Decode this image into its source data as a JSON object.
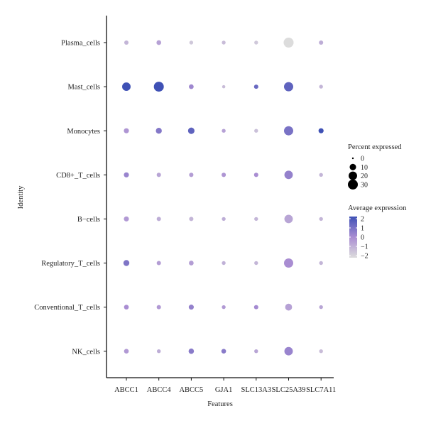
{
  "chart_data": {
    "type": "dotplot",
    "xlabel": "Features",
    "ylabel": "Identity",
    "features": [
      "ABCC1",
      "ABCC4",
      "ABCC5",
      "GJA1",
      "SLC13A3",
      "SLC25A39",
      "SLC7A11"
    ],
    "identities": [
      "Plasma_cells",
      "Mast_cells",
      "Monocytes",
      "CD8+_T_cells",
      "B−cells",
      "Regulatory_T_cells",
      "Conventional_T_cells",
      "NK_cells"
    ],
    "points": [
      {
        "identity": "Plasma_cells",
        "values": [
          {
            "feature": "ABCC1",
            "pct": 3,
            "avg": -1.0
          },
          {
            "feature": "ABCC4",
            "pct": 4,
            "avg": -0.5
          },
          {
            "feature": "ABCC5",
            "pct": 2,
            "avg": -1.5
          },
          {
            "feature": "GJA1",
            "pct": 2,
            "avg": -1.2
          },
          {
            "feature": "SLC13A3",
            "pct": 2,
            "avg": -1.5
          },
          {
            "feature": "SLC25A39",
            "pct": 30,
            "avg": -2.0
          },
          {
            "feature": "SLC7A11",
            "pct": 3,
            "avg": -0.8
          }
        ]
      },
      {
        "identity": "Mast_cells",
        "values": [
          {
            "feature": "ABCC1",
            "pct": 20,
            "avg": 2.3
          },
          {
            "feature": "ABCC4",
            "pct": 30,
            "avg": 2.3
          },
          {
            "feature": "ABCC5",
            "pct": 4,
            "avg": 0.2
          },
          {
            "feature": "GJA1",
            "pct": 1,
            "avg": -1.2
          },
          {
            "feature": "SLC13A3",
            "pct": 3,
            "avg": 1.2
          },
          {
            "feature": "SLC25A39",
            "pct": 25,
            "avg": 1.4
          },
          {
            "feature": "SLC7A11",
            "pct": 2,
            "avg": -1.0
          }
        ]
      },
      {
        "identity": "Monocytes",
        "values": [
          {
            "feature": "ABCC1",
            "pct": 5,
            "avg": -0.2
          },
          {
            "feature": "ABCC4",
            "pct": 8,
            "avg": 0.7
          },
          {
            "feature": "ABCC5",
            "pct": 10,
            "avg": 1.4
          },
          {
            "feature": "GJA1",
            "pct": 2,
            "avg": -0.5
          },
          {
            "feature": "SLC13A3",
            "pct": 2,
            "avg": -1.3
          },
          {
            "feature": "SLC25A39",
            "pct": 25,
            "avg": 0.9
          },
          {
            "feature": "SLC7A11",
            "pct": 5,
            "avg": 2.0
          }
        ]
      },
      {
        "identity": "CD8+_T_cells",
        "values": [
          {
            "feature": "ABCC1",
            "pct": 5,
            "avg": 0.3
          },
          {
            "feature": "ABCC4",
            "pct": 3,
            "avg": -0.6
          },
          {
            "feature": "ABCC5",
            "pct": 3,
            "avg": -0.4
          },
          {
            "feature": "GJA1",
            "pct": 3,
            "avg": -0.2
          },
          {
            "feature": "SLC13A3",
            "pct": 3,
            "avg": 0.0
          },
          {
            "feature": "SLC25A39",
            "pct": 20,
            "avg": 0.4
          },
          {
            "feature": "SLC7A11",
            "pct": 2,
            "avg": -1.0
          }
        ]
      },
      {
        "identity": "B−cells",
        "values": [
          {
            "feature": "ABCC1",
            "pct": 5,
            "avg": -0.3
          },
          {
            "feature": "ABCC4",
            "pct": 3,
            "avg": -0.8
          },
          {
            "feature": "ABCC5",
            "pct": 3,
            "avg": -1.0
          },
          {
            "feature": "GJA1",
            "pct": 2,
            "avg": -0.8
          },
          {
            "feature": "SLC13A3",
            "pct": 2,
            "avg": -1.0
          },
          {
            "feature": "SLC25A39",
            "pct": 20,
            "avg": -0.6
          },
          {
            "feature": "SLC7A11",
            "pct": 2,
            "avg": -1.0
          }
        ]
      },
      {
        "identity": "Regulatory_T_cells",
        "values": [
          {
            "feature": "ABCC1",
            "pct": 8,
            "avg": 0.8
          },
          {
            "feature": "ABCC4",
            "pct": 3,
            "avg": -0.4
          },
          {
            "feature": "ABCC5",
            "pct": 4,
            "avg": -0.4
          },
          {
            "feature": "GJA1",
            "pct": 2,
            "avg": -0.9
          },
          {
            "feature": "SLC13A3",
            "pct": 2,
            "avg": -1.0
          },
          {
            "feature": "SLC25A39",
            "pct": 25,
            "avg": 0.0
          },
          {
            "feature": "SLC7A11",
            "pct": 2,
            "avg": -1.0
          }
        ]
      },
      {
        "identity": "Conventional_T_cells",
        "values": [
          {
            "feature": "ABCC1",
            "pct": 4,
            "avg": 0.0
          },
          {
            "feature": "ABCC4",
            "pct": 3,
            "avg": -0.3
          },
          {
            "feature": "ABCC5",
            "pct": 5,
            "avg": 0.4
          },
          {
            "feature": "GJA1",
            "pct": 2,
            "avg": -0.3
          },
          {
            "feature": "SLC13A3",
            "pct": 3,
            "avg": 0.1
          },
          {
            "feature": "SLC25A39",
            "pct": 12,
            "avg": -0.5
          },
          {
            "feature": "SLC7A11",
            "pct": 2,
            "avg": -0.6
          }
        ]
      },
      {
        "identity": "NK_cells",
        "values": [
          {
            "feature": "ABCC1",
            "pct": 4,
            "avg": -0.3
          },
          {
            "feature": "ABCC4",
            "pct": 2,
            "avg": -0.8
          },
          {
            "feature": "ABCC5",
            "pct": 6,
            "avg": 0.6
          },
          {
            "feature": "GJA1",
            "pct": 4,
            "avg": 0.6
          },
          {
            "feature": "SLC13A3",
            "pct": 2,
            "avg": -0.6
          },
          {
            "feature": "SLC25A39",
            "pct": 20,
            "avg": 0.3
          },
          {
            "feature": "SLC7A11",
            "pct": 2,
            "avg": -1.2
          }
        ]
      }
    ],
    "size_legend": {
      "title": "Percent expressed",
      "values": [
        0,
        10,
        20,
        30
      ],
      "labels": [
        "0",
        "10",
        "20",
        "30"
      ]
    },
    "color_legend": {
      "title": "Average expression",
      "range": [
        -2,
        2
      ],
      "ticks": [
        2,
        1,
        0,
        -1,
        -2
      ],
      "tick_labels": [
        "2",
        "1",
        "0",
        "−1",
        "−2"
      ],
      "low_color": "#dcdcdc",
      "mid_color": "#a98dd2",
      "high_color": "#3f51b5"
    },
    "legend_position": "right"
  }
}
